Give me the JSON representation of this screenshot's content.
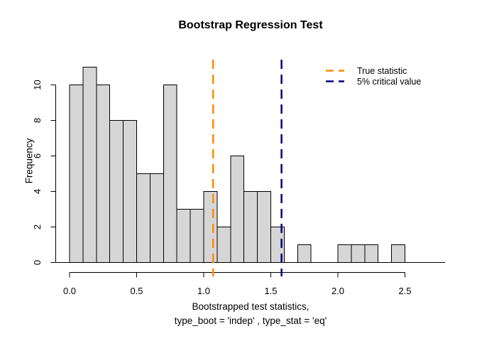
{
  "chart": {
    "title": "Bootstrap Regression Test",
    "ylabel": "Frequency",
    "xlabel_line1": "Bootstrapped test statistics,",
    "xlabel_line2": "type_boot = 'indep' , type_stat = 'eq'"
  },
  "chart_data": {
    "type": "bar",
    "subtype": "histogram",
    "title": "Bootstrap Regression Test",
    "xlabel": "Bootstrapped test statistics, type_boot = 'indep' , type_stat = 'eq'",
    "ylabel": "Frequency",
    "bin_start": 0.0,
    "bin_width": 0.1,
    "counts": [
      10,
      11,
      10,
      8,
      8,
      5,
      5,
      10,
      3,
      3,
      4,
      2,
      6,
      4,
      4,
      2,
      0,
      1,
      0,
      0,
      1,
      1,
      1,
      0,
      1
    ],
    "x_ticks": [
      0.0,
      0.5,
      1.0,
      1.5,
      2.0,
      2.5
    ],
    "x_tick_labels": [
      "0.0",
      "0.5",
      "1.0",
      "1.5",
      "2.0",
      "2.5"
    ],
    "y_ticks": [
      0,
      2,
      4,
      6,
      8,
      10
    ],
    "y_tick_labels": [
      "0",
      "2",
      "4",
      "6",
      "8",
      "10"
    ],
    "xlim": [
      0.0,
      2.5
    ],
    "ylim": [
      0,
      11
    ],
    "grid": false,
    "legend_position": "top-right",
    "bar_fill": "#d6d6d6",
    "bar_border": "#000000",
    "axis_color": "#000000",
    "vlines": [
      {
        "name": "true-statistic-line",
        "value": 1.07,
        "color": "#ff8c00",
        "style": "dashed",
        "label": "True statistic"
      },
      {
        "name": "critical-value-line",
        "value": 1.58,
        "color": "#000080",
        "style": "dashed",
        "label": "5% critical value"
      }
    ]
  }
}
